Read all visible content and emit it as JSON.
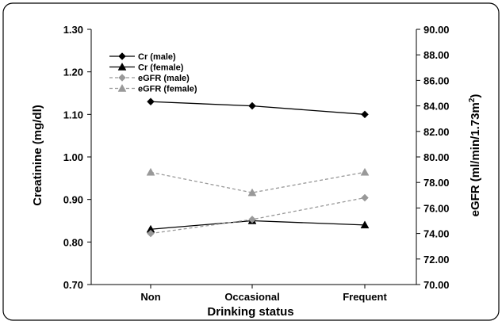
{
  "chart_data": {
    "type": "line",
    "categories": [
      "Non",
      "Occasional",
      "Frequent"
    ],
    "xlabel": "Drinking status",
    "ylabel": "Creatinine (mg/dl)",
    "ylabel_right_parts": [
      "eGFR (ml/min/1.73m",
      "2",
      ")"
    ],
    "ylim": [
      0.7,
      1.3
    ],
    "y_ticks": [
      "0.70",
      "0.80",
      "0.90",
      "1.00",
      "1.10",
      "1.20",
      "1.30"
    ],
    "ylim_right": [
      70.0,
      90.0
    ],
    "y_right_ticks": [
      "70.00",
      "72.00",
      "74.00",
      "76.00",
      "78.00",
      "80.00",
      "82.00",
      "84.00",
      "86.00",
      "88.00",
      "90.00"
    ],
    "legend_position": "top-left",
    "series": [
      {
        "name": "Cr (male)",
        "axis": "left",
        "marker": "diamond",
        "style": "solid",
        "color": "#000000",
        "values": [
          1.13,
          1.12,
          1.1
        ]
      },
      {
        "name": "Cr (female)",
        "axis": "left",
        "marker": "triangle",
        "style": "solid",
        "color": "#000000",
        "values": [
          0.83,
          0.85,
          0.84
        ]
      },
      {
        "name": "eGFR (male)",
        "axis": "right",
        "marker": "diamond",
        "style": "dashed",
        "color": "#999999",
        "values": [
          74.0,
          75.1,
          76.8
        ]
      },
      {
        "name": "eGFR (female)",
        "axis": "right",
        "marker": "triangle",
        "style": "dashed",
        "color": "#999999",
        "values": [
          78.8,
          77.2,
          78.8
        ]
      }
    ]
  }
}
